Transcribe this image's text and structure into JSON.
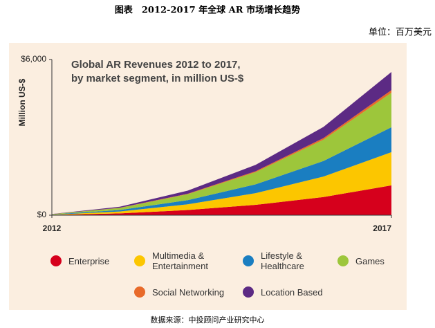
{
  "page_title": "图表　2012-2017 年全球 AR 市场增长趋势",
  "unit": "单位：百万美元",
  "source": "数据来源：中投顾问产业研究中心",
  "chart_data": {
    "type": "stacked_area",
    "title": [
      "Global AR Revenues 2012 to 2017,",
      "by market segment, in million US-$"
    ],
    "ylabel": "Million US-$",
    "x": [
      2012,
      2013,
      2014,
      2015,
      2016,
      2017
    ],
    "xlim": [
      2012,
      2017
    ],
    "xticks": [
      2012,
      2017
    ],
    "ylim": [
      0,
      6000
    ],
    "yticks": [
      {
        "value": 0,
        "label": "$0"
      },
      {
        "value": 6000,
        "label": "$6,000"
      }
    ],
    "series": [
      {
        "name": "Enterprise",
        "color": "#d6001c",
        "values": [
          10,
          70,
          200,
          400,
          700,
          1150
        ]
      },
      {
        "name": "Multimedia & Entertainment",
        "color": "#fcc600",
        "values": [
          10,
          75,
          220,
          450,
          790,
          1280
        ]
      },
      {
        "name": "Lifestyle & Healthcare",
        "color": "#1a7ec1",
        "values": [
          10,
          55,
          160,
          340,
          600,
          960
        ]
      },
      {
        "name": "Games",
        "color": "#9dc63b",
        "values": [
          10,
          80,
          230,
          470,
          820,
          1330
        ]
      },
      {
        "name": "Social Networking",
        "color": "#e86a2a",
        "values": [
          2,
          6,
          17,
          35,
          62,
          100
        ]
      },
      {
        "name": "Location Based",
        "color": "#5c2a84",
        "values": [
          5,
          40,
          120,
          245,
          430,
          700
        ]
      }
    ]
  }
}
